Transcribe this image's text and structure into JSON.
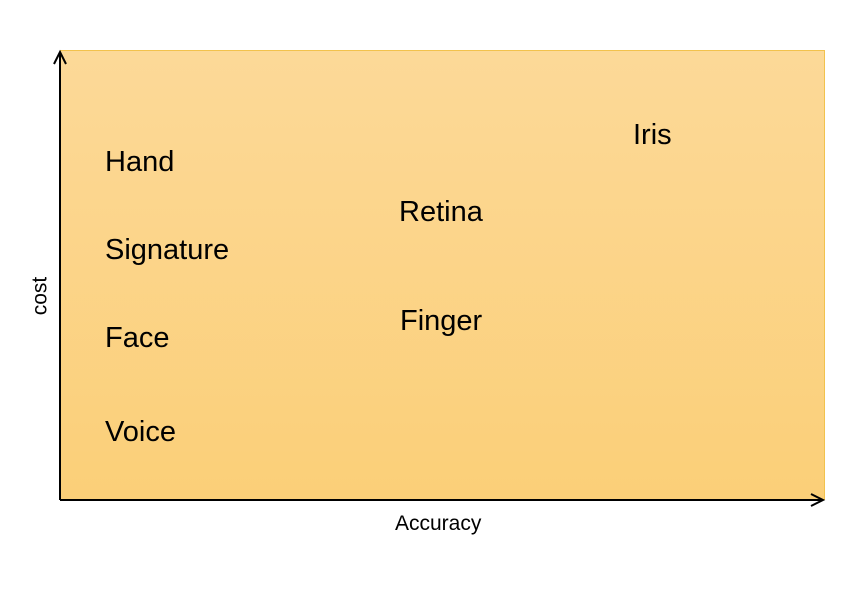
{
  "diagram": {
    "x_axis_label": "Accuracy",
    "y_axis_label": "cost",
    "items": [
      {
        "label": "Hand"
      },
      {
        "label": "Signature"
      },
      {
        "label": "Face"
      },
      {
        "label": "Voice"
      },
      {
        "label": "Retina"
      },
      {
        "label": "Finger"
      },
      {
        "label": "Iris"
      }
    ]
  }
}
